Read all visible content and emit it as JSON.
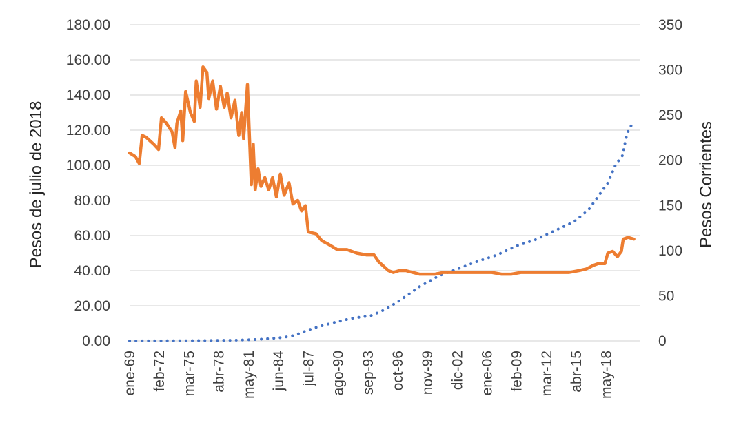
{
  "chart_data": {
    "type": "line",
    "title": "",
    "ylabel_left": "Pesos de julio de 2018",
    "ylabel_right": "Pesos Corrientes",
    "ylim_left": [
      0,
      180
    ],
    "ylim_right": [
      0,
      350
    ],
    "left_ticks": [
      "0.00",
      "20.00",
      "40.00",
      "60.00",
      "80.00",
      "100.00",
      "120.00",
      "140.00",
      "160.00",
      "180.00"
    ],
    "right_ticks": [
      "0",
      "50",
      "100",
      "150",
      "200",
      "250",
      "300",
      "350"
    ],
    "x_ticks": [
      {
        "label": "ene-69",
        "t": 1969.0
      },
      {
        "label": "feb-72",
        "t": 1972.08
      },
      {
        "label": "mar-75",
        "t": 1975.17
      },
      {
        "label": "abr-78",
        "t": 1978.25
      },
      {
        "label": "may-81",
        "t": 1981.33
      },
      {
        "label": "jun-84",
        "t": 1984.42
      },
      {
        "label": "jul-87",
        "t": 1987.5
      },
      {
        "label": "ago-90",
        "t": 1990.58
      },
      {
        "label": "sep-93",
        "t": 1993.67
      },
      {
        "label": "oct-96",
        "t": 1996.75
      },
      {
        "label": "nov-99",
        "t": 1999.83
      },
      {
        "label": "dic-02",
        "t": 2002.92
      },
      {
        "label": "ene-06",
        "t": 2006.0
      },
      {
        "label": "feb-09",
        "t": 2009.08
      },
      {
        "label": "mar-12",
        "t": 2012.17
      },
      {
        "label": "abr-15",
        "t": 2015.25
      },
      {
        "label": "may-18",
        "t": 2018.33
      }
    ],
    "xlim": [
      1969.0,
      2021.8
    ],
    "series": [
      {
        "name": "Pesos de julio de 2018",
        "axis": "left",
        "style": "solid",
        "color": "#ED7D31",
        "points": [
          [
            1969.0,
            107
          ],
          [
            1969.6,
            105
          ],
          [
            1970.0,
            101
          ],
          [
            1970.3,
            117
          ],
          [
            1970.7,
            116
          ],
          [
            1971.5,
            112
          ],
          [
            1972.0,
            109
          ],
          [
            1972.3,
            127
          ],
          [
            1972.8,
            124
          ],
          [
            1973.4,
            119
          ],
          [
            1973.7,
            110
          ],
          [
            1973.9,
            124
          ],
          [
            1974.3,
            131
          ],
          [
            1974.5,
            114
          ],
          [
            1974.8,
            142
          ],
          [
            1975.3,
            130
          ],
          [
            1975.7,
            125
          ],
          [
            1975.9,
            148
          ],
          [
            1976.3,
            133
          ],
          [
            1976.6,
            156
          ],
          [
            1977.0,
            153
          ],
          [
            1977.2,
            138
          ],
          [
            1977.6,
            148
          ],
          [
            1978.0,
            132
          ],
          [
            1978.4,
            145
          ],
          [
            1978.8,
            133
          ],
          [
            1979.1,
            141
          ],
          [
            1979.5,
            127
          ],
          [
            1979.9,
            137
          ],
          [
            1980.3,
            117
          ],
          [
            1980.6,
            130
          ],
          [
            1980.8,
            115
          ],
          [
            1981.2,
            146
          ],
          [
            1981.4,
            117
          ],
          [
            1981.6,
            89
          ],
          [
            1981.8,
            112
          ],
          [
            1982.0,
            86
          ],
          [
            1982.3,
            98
          ],
          [
            1982.6,
            88
          ],
          [
            1983.0,
            93
          ],
          [
            1983.4,
            86
          ],
          [
            1983.8,
            93
          ],
          [
            1984.2,
            82
          ],
          [
            1984.6,
            95
          ],
          [
            1985.0,
            83
          ],
          [
            1985.5,
            90
          ],
          [
            1985.9,
            78
          ],
          [
            1986.4,
            80
          ],
          [
            1986.8,
            74
          ],
          [
            1987.2,
            77
          ],
          [
            1987.5,
            62
          ],
          [
            1988.3,
            61
          ],
          [
            1988.9,
            57
          ],
          [
            1989.6,
            55
          ],
          [
            1990.5,
            52
          ],
          [
            1991.5,
            52
          ],
          [
            1992.5,
            50
          ],
          [
            1993.5,
            49
          ],
          [
            1994.3,
            49
          ],
          [
            1994.8,
            45
          ],
          [
            1995.4,
            42
          ],
          [
            1995.8,
            40
          ],
          [
            1996.3,
            39
          ],
          [
            1996.9,
            40
          ],
          [
            1997.6,
            40
          ],
          [
            1998.3,
            39
          ],
          [
            1999.0,
            38
          ],
          [
            1999.8,
            38
          ],
          [
            2000.6,
            38
          ],
          [
            2001.5,
            39
          ],
          [
            2002.5,
            39
          ],
          [
            2003.5,
            39
          ],
          [
            2004.5,
            39
          ],
          [
            2005.5,
            39
          ],
          [
            2006.5,
            39
          ],
          [
            2007.5,
            38
          ],
          [
            2008.5,
            38
          ],
          [
            2009.5,
            39
          ],
          [
            2010.5,
            39
          ],
          [
            2011.5,
            39
          ],
          [
            2012.5,
            39
          ],
          [
            2013.5,
            39
          ],
          [
            2014.5,
            39
          ],
          [
            2015.5,
            40
          ],
          [
            2016.3,
            41
          ],
          [
            2017.0,
            43
          ],
          [
            2017.5,
            44
          ],
          [
            2018.2,
            44
          ],
          [
            2018.5,
            50
          ],
          [
            2019.0,
            51
          ],
          [
            2019.5,
            48
          ],
          [
            2019.9,
            51
          ],
          [
            2020.1,
            58
          ],
          [
            2020.6,
            59
          ],
          [
            2021.2,
            58
          ]
        ]
      },
      {
        "name": "Pesos Corrientes",
        "axis": "right",
        "style": "dotted",
        "color": "#4472C4",
        "points": [
          [
            1969.0,
            0
          ],
          [
            1975.0,
            0.2
          ],
          [
            1980.0,
            0.8
          ],
          [
            1982.0,
            1.5
          ],
          [
            1983.5,
            2.5
          ],
          [
            1985.0,
            4
          ],
          [
            1986.0,
            6
          ],
          [
            1987.0,
            10
          ],
          [
            1988.0,
            14
          ],
          [
            1990.0,
            20
          ],
          [
            1992.0,
            25
          ],
          [
            1994.0,
            28
          ],
          [
            1995.5,
            35
          ],
          [
            1997.0,
            45
          ],
          [
            1999.0,
            60
          ],
          [
            2001.0,
            72
          ],
          [
            2003.0,
            80
          ],
          [
            2005.0,
            88
          ],
          [
            2007.0,
            95
          ],
          [
            2009.0,
            105
          ],
          [
            2011.0,
            112
          ],
          [
            2013.0,
            122
          ],
          [
            2015.0,
            132
          ],
          [
            2016.5,
            145
          ],
          [
            2017.5,
            160
          ],
          [
            2018.5,
            175
          ],
          [
            2019.3,
            195
          ],
          [
            2020.0,
            205
          ],
          [
            2020.5,
            230
          ],
          [
            2021.0,
            240
          ]
        ]
      }
    ]
  }
}
